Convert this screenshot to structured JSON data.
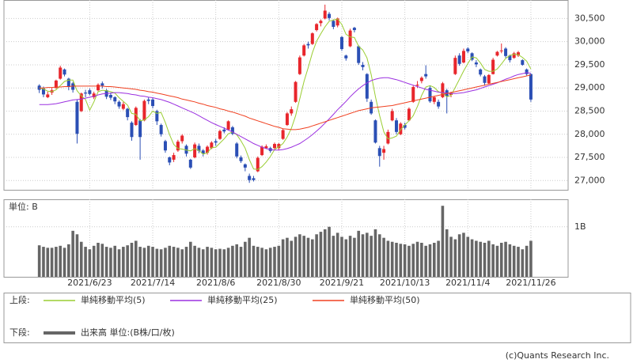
{
  "chart_data": {
    "type": "candlestick",
    "categories": [
      null,
      null,
      null,
      null,
      null,
      null,
      null,
      null,
      null,
      null,
      null,
      null,
      "2021/6/23",
      null,
      null,
      null,
      null,
      null,
      null,
      null,
      null,
      null,
      null,
      null,
      null,
      null,
      null,
      "2021/7/14",
      null,
      null,
      null,
      null,
      null,
      null,
      null,
      null,
      null,
      null,
      null,
      null,
      null,
      null,
      "2021/8/6",
      null,
      null,
      null,
      null,
      null,
      null,
      null,
      null,
      null,
      null,
      null,
      null,
      null,
      null,
      "2021/8/30",
      null,
      null,
      null,
      null,
      null,
      null,
      null,
      null,
      null,
      null,
      null,
      null,
      null,
      null,
      "2021/9/21",
      null,
      null,
      null,
      null,
      null,
      null,
      null,
      null,
      null,
      null,
      null,
      null,
      null,
      null,
      "2021/10/13",
      null,
      null,
      null,
      null,
      null,
      null,
      null,
      null,
      null,
      null,
      null,
      null,
      null,
      null,
      "2021/11/4",
      null,
      null,
      null,
      null,
      null,
      null,
      null,
      null,
      null,
      null,
      null,
      null,
      null,
      null,
      "2021/11/26"
    ],
    "ohlc": [
      [
        29050,
        29080,
        28890,
        28960
      ],
      [
        28990,
        29030,
        28800,
        28860
      ],
      [
        28800,
        28920,
        28780,
        28860
      ],
      [
        28900,
        29000,
        28850,
        28950
      ],
      [
        29000,
        29180,
        28980,
        29160
      ],
      [
        29200,
        29480,
        29180,
        29440
      ],
      [
        29400,
        29420,
        29250,
        29290
      ],
      [
        29200,
        29220,
        28950,
        29020
      ],
      [
        29100,
        29130,
        28900,
        28960
      ],
      [
        28700,
        28750,
        27800,
        28010
      ],
      [
        28500,
        28900,
        28480,
        28880
      ],
      [
        28900,
        28960,
        28800,
        28880
      ],
      [
        28950,
        28990,
        28840,
        28870
      ],
      [
        28800,
        28920,
        28760,
        28880
      ],
      [
        28950,
        29100,
        28930,
        29070
      ],
      [
        29100,
        29140,
        28990,
        29050
      ],
      [
        28950,
        28980,
        28760,
        28810
      ],
      [
        28850,
        28900,
        28740,
        28790
      ],
      [
        28800,
        28820,
        28650,
        28710
      ],
      [
        28700,
        28730,
        28550,
        28600
      ],
      [
        28550,
        28700,
        28520,
        28650
      ],
      [
        28550,
        28570,
        28300,
        28370
      ],
      [
        28250,
        28280,
        27860,
        27940
      ],
      [
        28200,
        28600,
        28180,
        28570
      ],
      [
        28300,
        28330,
        27450,
        27940
      ],
      [
        28300,
        28750,
        28280,
        28720
      ],
      [
        28750,
        28800,
        28650,
        28720
      ],
      [
        28750,
        28790,
        28560,
        28610
      ],
      [
        28500,
        28530,
        28200,
        28280
      ],
      [
        28200,
        28230,
        27950,
        28000
      ],
      [
        27850,
        27880,
        27600,
        27650
      ],
      [
        27500,
        27520,
        27330,
        27390
      ],
      [
        27450,
        27600,
        27400,
        27550
      ],
      [
        27650,
        27880,
        27620,
        27840
      ],
      [
        27850,
        28000,
        27800,
        27970
      ],
      [
        27750,
        27780,
        27520,
        27580
      ],
      [
        27450,
        27470,
        27250,
        27280
      ],
      [
        27500,
        27820,
        27480,
        27780
      ],
      [
        27750,
        27800,
        27590,
        27640
      ],
      [
        27650,
        27680,
        27520,
        27580
      ],
      [
        27600,
        27760,
        27560,
        27730
      ],
      [
        27700,
        27850,
        27680,
        27820
      ],
      [
        27850,
        27900,
        27750,
        27820
      ],
      [
        27900,
        28100,
        27880,
        28070
      ],
      [
        28100,
        28150,
        28020,
        28060
      ],
      [
        28100,
        28300,
        28080,
        28280
      ],
      [
        28150,
        28180,
        27980,
        28010
      ],
      [
        27800,
        27830,
        27480,
        27520
      ],
      [
        27500,
        27540,
        27380,
        27420
      ],
      [
        27350,
        27370,
        27200,
        27280
      ],
      [
        27100,
        27150,
        26950,
        27010
      ],
      [
        27050,
        27100,
        26980,
        27010
      ],
      [
        27200,
        27520,
        27180,
        27490
      ],
      [
        27550,
        27760,
        27530,
        27730
      ],
      [
        27700,
        27780,
        27680,
        27740
      ],
      [
        27700,
        27730,
        27600,
        27640
      ],
      [
        27700,
        27820,
        27680,
        27790
      ],
      [
        27700,
        27810,
        27650,
        27790
      ],
      [
        27900,
        28120,
        27880,
        28090
      ],
      [
        28200,
        28480,
        28180,
        28450
      ],
      [
        28450,
        28600,
        28400,
        28540
      ],
      [
        28700,
        29150,
        28680,
        29130
      ],
      [
        29300,
        29700,
        29280,
        29660
      ],
      [
        29700,
        29950,
        29680,
        29920
      ],
      [
        29950,
        30000,
        29850,
        29920
      ],
      [
        29950,
        30200,
        29930,
        30180
      ],
      [
        30250,
        30400,
        30220,
        30380
      ],
      [
        30400,
        30480,
        30330,
        30450
      ],
      [
        30500,
        30800,
        30480,
        30670
      ],
      [
        30600,
        30640,
        30460,
        30510
      ],
      [
        30450,
        30480,
        30270,
        30320
      ],
      [
        30350,
        30520,
        30310,
        30500
      ],
      [
        30100,
        30120,
        29800,
        29840
      ],
      [
        29700,
        29720,
        29590,
        29640
      ],
      [
        29900,
        30280,
        29880,
        30240
      ],
      [
        30300,
        30320,
        30200,
        30250
      ],
      [
        29900,
        29920,
        29500,
        29540
      ],
      [
        29500,
        29560,
        29380,
        29450
      ],
      [
        29300,
        29320,
        28700,
        28770
      ],
      [
        28700,
        28750,
        28420,
        28450
      ],
      [
        28300,
        28320,
        27800,
        27820
      ],
      [
        27700,
        27750,
        27300,
        27530
      ],
      [
        27600,
        27750,
        27450,
        27680
      ],
      [
        27800,
        28100,
        27780,
        28050
      ],
      [
        28300,
        28550,
        28280,
        28500
      ],
      [
        28300,
        28350,
        28000,
        28050
      ],
      [
        28000,
        28260,
        27980,
        28230
      ],
      [
        28200,
        28250,
        28100,
        28140
      ],
      [
        28300,
        28580,
        28280,
        28550
      ],
      [
        28700,
        29050,
        28680,
        29020
      ],
      [
        29050,
        29150,
        29000,
        29070
      ],
      [
        29150,
        29250,
        29100,
        29220
      ],
      [
        29300,
        29490,
        29200,
        29250
      ],
      [
        29000,
        29050,
        28680,
        28710
      ],
      [
        28700,
        28830,
        28650,
        28800
      ],
      [
        28700,
        28750,
        28550,
        28600
      ],
      [
        28800,
        29130,
        28780,
        29100
      ],
      [
        28950,
        28980,
        28450,
        28820
      ],
      [
        28850,
        28920,
        28800,
        28890
      ],
      [
        29300,
        29700,
        29280,
        29650
      ],
      [
        29700,
        29750,
        29480,
        29520
      ],
      [
        29550,
        29850,
        29530,
        29800
      ],
      [
        29850,
        29880,
        29750,
        29790
      ],
      [
        29750,
        29770,
        29580,
        29610
      ],
      [
        29550,
        29600,
        29450,
        29510
      ],
      [
        29400,
        29420,
        29250,
        29290
      ],
      [
        29250,
        29280,
        29050,
        29110
      ],
      [
        29100,
        29300,
        29080,
        29280
      ],
      [
        29300,
        29650,
        29290,
        29610
      ],
      [
        29700,
        29800,
        29680,
        29780
      ],
      [
        29800,
        29960,
        29750,
        29810
      ],
      [
        29850,
        29880,
        29650,
        29690
      ],
      [
        29700,
        29720,
        29550,
        29600
      ],
      [
        29650,
        29780,
        29630,
        29750
      ],
      [
        29700,
        29800,
        29670,
        29770
      ],
      [
        29600,
        29620,
        29480,
        29500
      ],
      [
        29400,
        29420,
        29270,
        29300
      ],
      [
        29300,
        29310,
        28700,
        28750
      ]
    ],
    "up_color": "#e8262c",
    "down_color": "#2b4fb5",
    "series": [
      {
        "name": "単純移動平均(5)",
        "color": "#9acd32",
        "values": [
          29000,
          28980,
          28930,
          28920,
          28960,
          29050,
          29140,
          29170,
          29170,
          28940,
          28830,
          28750,
          28520,
          28700,
          28920,
          28950,
          28940,
          28920,
          28890,
          28790,
          28710,
          28630,
          28450,
          28430,
          28290,
          28310,
          28380,
          28500,
          28450,
          28470,
          28250,
          27990,
          27780,
          27690,
          27680,
          27660,
          27640,
          27690,
          27650,
          27570,
          27600,
          27710,
          27720,
          27810,
          27900,
          28010,
          28050,
          27990,
          27860,
          27700,
          27450,
          27250,
          27240,
          27300,
          27400,
          27520,
          27670,
          27730,
          27800,
          27940,
          28130,
          28400,
          28770,
          29140,
          29440,
          29760,
          30010,
          30170,
          30320,
          30440,
          30470,
          30490,
          30370,
          30160,
          30100,
          30090,
          29900,
          29820,
          29650,
          29290,
          28810,
          28400,
          28050,
          27900,
          27920,
          27960,
          28100,
          28200,
          28290,
          28400,
          28600,
          28840,
          29020,
          29050,
          29010,
          28920,
          28890,
          28810,
          28840,
          29010,
          29190,
          29370,
          29530,
          29670,
          29650,
          29540,
          29400,
          29360,
          29360,
          29410,
          29520,
          29640,
          29700,
          29730,
          29720,
          29660,
          29580,
          29410
        ]
      },
      {
        "name": "単純移動平均(25)",
        "color": "#9b30e0",
        "values": [
          28640,
          28640,
          28640,
          28650,
          28660,
          28680,
          28700,
          28720,
          28740,
          28750,
          28760,
          28780,
          28800,
          28820,
          28850,
          28870,
          28880,
          28890,
          28900,
          28900,
          28890,
          28880,
          28860,
          28850,
          28830,
          28820,
          28800,
          28790,
          28770,
          28750,
          28720,
          28690,
          28650,
          28610,
          28570,
          28530,
          28490,
          28450,
          28400,
          28350,
          28300,
          28250,
          28210,
          28170,
          28130,
          28090,
          28050,
          28000,
          27950,
          27900,
          27850,
          27800,
          27760,
          27720,
          27690,
          27670,
          27660,
          27660,
          27670,
          27690,
          27720,
          27760,
          27800,
          27860,
          27920,
          27990,
          28070,
          28150,
          28240,
          28330,
          28430,
          28530,
          28620,
          28710,
          28810,
          28900,
          28980,
          29050,
          29110,
          29160,
          29190,
          29210,
          29220,
          29220,
          29200,
          29180,
          29150,
          29120,
          29090,
          29060,
          29030,
          29000,
          28970,
          28950,
          28930,
          28910,
          28900,
          28890,
          28880,
          28880,
          28890,
          28900,
          28920,
          28940,
          28960,
          28990,
          29020,
          29050,
          29080,
          29110,
          29150,
          29190,
          29220,
          29260,
          29290,
          29310,
          29330,
          29320
        ]
      },
      {
        "name": "単純移動平均(50)",
        "color": "#f04020",
        "values": [
          29000,
          29000,
          29010,
          29010,
          29020,
          29020,
          29030,
          29030,
          29040,
          29040,
          29040,
          29040,
          29040,
          29040,
          29040,
          29040,
          29030,
          29030,
          29020,
          29010,
          29000,
          28990,
          28980,
          28970,
          28950,
          28940,
          28920,
          28910,
          28890,
          28870,
          28850,
          28830,
          28810,
          28790,
          28760,
          28740,
          28720,
          28700,
          28670,
          28650,
          28620,
          28600,
          28580,
          28550,
          28530,
          28500,
          28480,
          28450,
          28420,
          28390,
          28350,
          28320,
          28290,
          28260,
          28230,
          28200,
          28170,
          28150,
          28120,
          28110,
          28100,
          28100,
          28110,
          28130,
          28150,
          28180,
          28210,
          28240,
          28270,
          28300,
          28330,
          28360,
          28390,
          28420,
          28450,
          28480,
          28510,
          28530,
          28550,
          28570,
          28580,
          28590,
          28600,
          28610,
          28620,
          28640,
          28660,
          28680,
          28700,
          28720,
          28740,
          28760,
          28780,
          28800,
          28820,
          28840,
          28860,
          28880,
          28900,
          28920,
          28940,
          28960,
          28980,
          29000,
          29020,
          29040,
          29060,
          29080,
          29100,
          29120,
          29140,
          29160,
          29180,
          29200,
          29220,
          29240,
          29260,
          29280
        ]
      }
    ],
    "ylim": [
      26800,
      30900
    ],
    "yticks": [
      {
        "value": 27000,
        "label": "27,000"
      },
      {
        "value": 27500,
        "label": "27,500"
      },
      {
        "value": 28000,
        "label": "28,000"
      },
      {
        "value": 28500,
        "label": "28,500"
      },
      {
        "value": 29000,
        "label": "29,000"
      },
      {
        "value": 29500,
        "label": "29,500"
      },
      {
        "value": 30000,
        "label": "30,000"
      },
      {
        "value": 30500,
        "label": "30,500"
      }
    ],
    "grid": true,
    "volume": {
      "unit_label": "単位: B",
      "color": "#666666",
      "values": [
        0.63,
        0.6,
        0.58,
        0.58,
        0.6,
        0.62,
        0.58,
        0.65,
        0.92,
        0.85,
        0.7,
        0.6,
        0.55,
        0.62,
        0.68,
        0.66,
        0.6,
        0.58,
        0.62,
        0.55,
        0.6,
        0.63,
        0.68,
        0.72,
        0.6,
        0.58,
        0.62,
        0.6,
        0.56,
        0.55,
        0.58,
        0.62,
        0.6,
        0.58,
        0.55,
        0.6,
        0.7,
        0.62,
        0.58,
        0.55,
        0.6,
        0.58,
        0.55,
        0.56,
        0.55,
        0.58,
        0.62,
        0.65,
        0.6,
        0.7,
        0.78,
        0.62,
        0.6,
        0.58,
        0.55,
        0.58,
        0.6,
        0.62,
        0.75,
        0.78,
        0.72,
        0.8,
        0.85,
        0.82,
        0.78,
        0.75,
        0.85,
        0.9,
        0.95,
        1.0,
        0.82,
        0.88,
        0.8,
        0.75,
        0.82,
        0.78,
        0.92,
        0.85,
        0.88,
        0.82,
        0.95,
        0.85,
        0.78,
        0.72,
        0.7,
        0.68,
        0.66,
        0.65,
        0.62,
        0.66,
        0.7,
        0.68,
        0.62,
        0.65,
        0.68,
        0.72,
        1.42,
        0.95,
        0.8,
        0.75,
        0.85,
        0.88,
        0.8,
        0.75,
        0.72,
        0.7,
        0.68,
        0.72,
        0.65,
        0.62,
        0.68,
        0.7,
        0.65,
        0.62,
        0.6,
        0.55,
        0.62,
        0.72
      ],
      "ylim": [
        0,
        1.55
      ],
      "yticks": [
        {
          "value": 1,
          "label": "1B"
        }
      ]
    },
    "legend_upper_label": "上段:",
    "legend_lower_label": "下段:",
    "volume_legend": "出来高 単位:(B株/口/枚)"
  },
  "copyright": "(c)Quants Research Inc."
}
